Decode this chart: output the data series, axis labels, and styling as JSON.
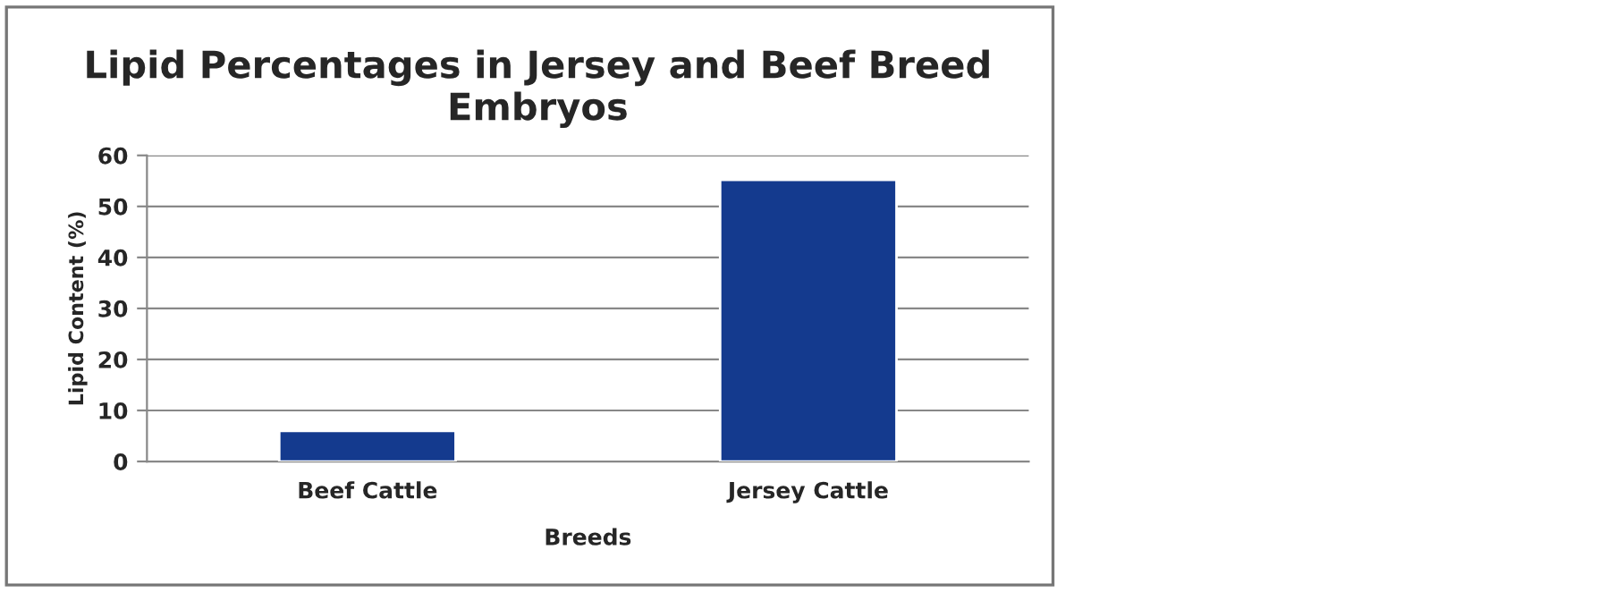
{
  "chart_data": {
    "type": "bar",
    "title": "Lipid Percentages in Jersey and Beef Breed\nEmbryos",
    "xlabel": "Breeds",
    "ylabel": "Lipid Content (%)",
    "categories": [
      "Beef Cattle",
      "Jersey Cattle"
    ],
    "values": [
      6,
      55.2
    ],
    "color": "#143a8e",
    "ylim": [
      0,
      60
    ],
    "yticks": [
      0,
      10,
      20,
      30,
      40,
      50,
      60
    ],
    "grid": "y",
    "legend": false
  }
}
